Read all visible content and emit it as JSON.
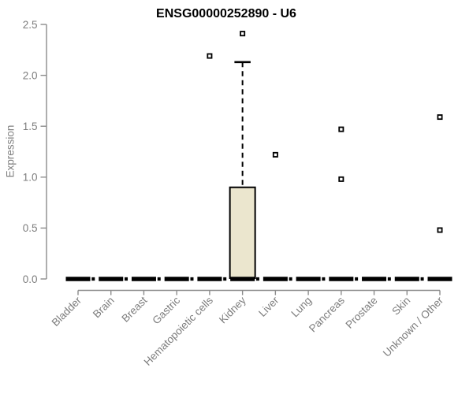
{
  "chart_data": {
    "type": "boxplot",
    "title": "ENSG00000252890 - U6",
    "ylabel": "Expression",
    "ylim": [
      0.0,
      2.5
    ],
    "ytick_labels": [
      "0.0",
      "0.5",
      "1.0",
      "1.5",
      "2.0",
      "2.5"
    ],
    "ytick_values": [
      0.0,
      0.5,
      1.0,
      1.5,
      2.0,
      2.5
    ],
    "grid": false,
    "legend": "none",
    "categories": [
      "Bladder",
      "Brain",
      "Breast",
      "Gastric",
      "Hematopoietic cells",
      "Kidney",
      "Liver",
      "Lung",
      "Pancreas",
      "Prostate",
      "Skin",
      "Unknown / Other"
    ],
    "series": [
      {
        "category": "Bladder",
        "whisker_low": 0,
        "q1": 0,
        "median": 0,
        "q3": 0,
        "whisker_high": 0,
        "outliers": []
      },
      {
        "category": "Brain",
        "whisker_low": 0,
        "q1": 0,
        "median": 0,
        "q3": 0,
        "whisker_high": 0,
        "outliers": []
      },
      {
        "category": "Breast",
        "whisker_low": 0,
        "q1": 0,
        "median": 0,
        "q3": 0,
        "whisker_high": 0,
        "outliers": []
      },
      {
        "category": "Gastric",
        "whisker_low": 0,
        "q1": 0,
        "median": 0,
        "q3": 0,
        "whisker_high": 0,
        "outliers": []
      },
      {
        "category": "Hematopoietic cells",
        "whisker_low": 0,
        "q1": 0,
        "median": 0,
        "q3": 0,
        "whisker_high": 0,
        "outliers": [
          2.19
        ]
      },
      {
        "category": "Kidney",
        "whisker_low": 0,
        "q1": 0,
        "median": 0,
        "q3": 0.9,
        "whisker_high": 2.13,
        "outliers": [
          2.41
        ]
      },
      {
        "category": "Liver",
        "whisker_low": 0,
        "q1": 0,
        "median": 0,
        "q3": 0,
        "whisker_high": 0,
        "outliers": [
          1.22
        ]
      },
      {
        "category": "Lung",
        "whisker_low": 0,
        "q1": 0,
        "median": 0,
        "q3": 0,
        "whisker_high": 0,
        "outliers": []
      },
      {
        "category": "Pancreas",
        "whisker_low": 0,
        "q1": 0,
        "median": 0,
        "q3": 0,
        "whisker_high": 0,
        "outliers": [
          1.47,
          0.98
        ]
      },
      {
        "category": "Prostate",
        "whisker_low": 0,
        "q1": 0,
        "median": 0,
        "q3": 0,
        "whisker_high": 0,
        "outliers": []
      },
      {
        "category": "Skin",
        "whisker_low": 0,
        "q1": 0,
        "median": 0,
        "q3": 0,
        "whisker_high": 0,
        "outliers": []
      },
      {
        "category": "Unknown / Other",
        "whisker_low": 0,
        "q1": 0,
        "median": 0,
        "q3": 0,
        "whisker_high": 0,
        "outliers": [
          1.59,
          0.48
        ]
      }
    ],
    "colors": {
      "box_fill": "#EBE6CE",
      "box_stroke": "#000000",
      "zero_line": "#000000",
      "axis_line": "#8c8c8c",
      "tick_text": "#7d7d7d",
      "title_text": "#000000",
      "background": "#ffffff"
    }
  }
}
